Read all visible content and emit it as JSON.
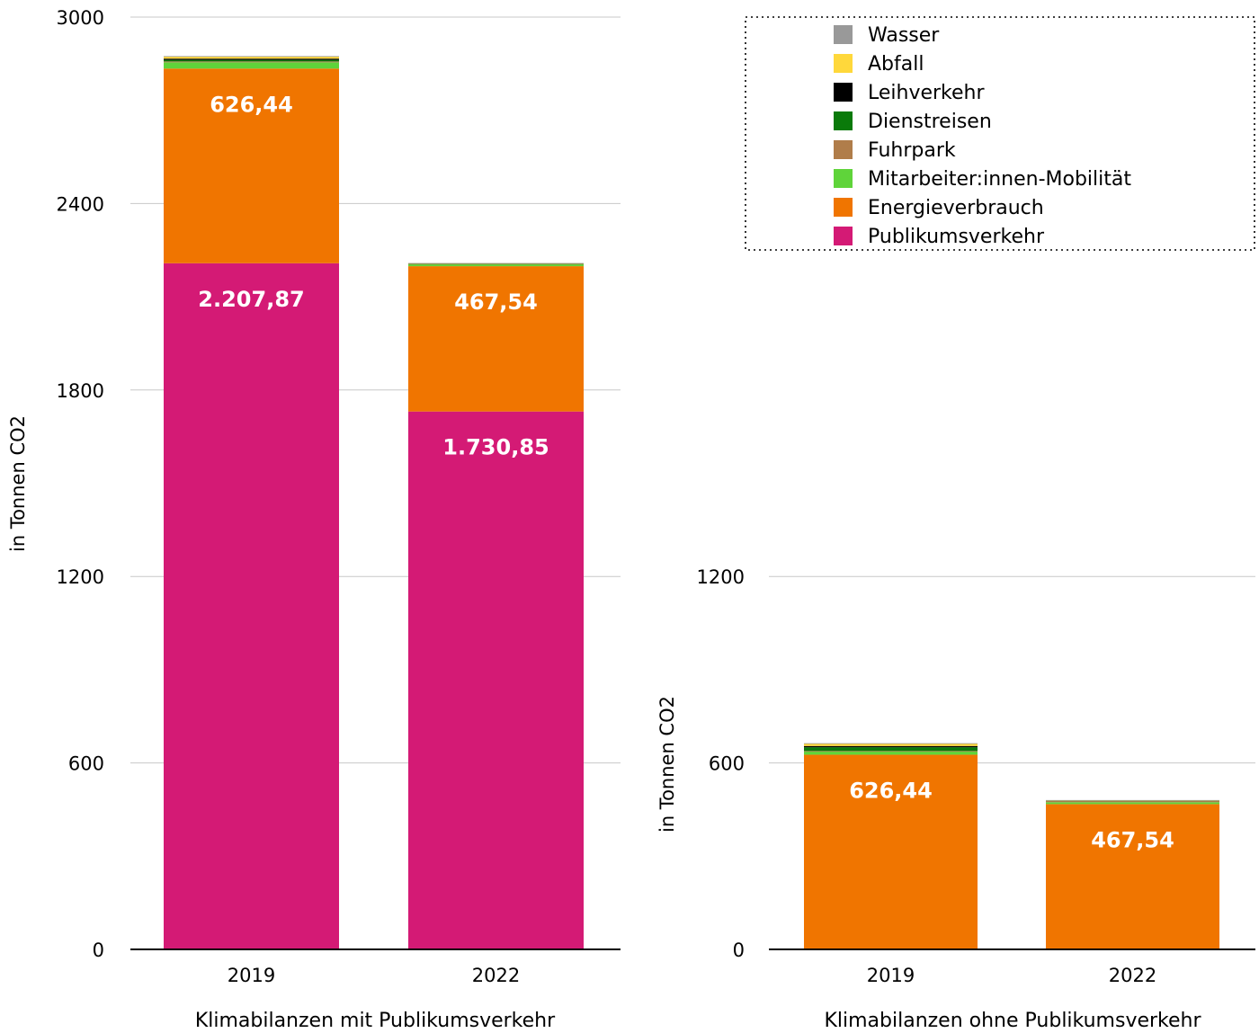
{
  "legend": {
    "items": [
      {
        "label": "Wasser",
        "color": "#999999"
      },
      {
        "label": "Abfall",
        "color": "#FFD83B"
      },
      {
        "label": "Leihverkehr",
        "color": "#000000"
      },
      {
        "label": "Dienstreisen",
        "color": "#0A7A0A"
      },
      {
        "label": "Fuhrpark",
        "color": "#B07D4A"
      },
      {
        "label": "Mitarbeiter:innen-Mobilität",
        "color": "#5FD43A"
      },
      {
        "label": "Energieverbrauch",
        "color": "#F07500"
      },
      {
        "label": "Publikumsverkehr",
        "color": "#D41A75"
      }
    ],
    "placement": "top-right",
    "border": "dotted"
  },
  "chart_data": [
    {
      "type": "bar",
      "stacked": true,
      "categories": [
        "2019",
        "2022"
      ],
      "xlabel": "Klimabilanzen mit Publikumsverkehr",
      "ylabel": "in Tonnen CO2",
      "ylim": [
        0,
        3000
      ],
      "yticks": [
        "0",
        "600",
        "1200",
        "1800",
        "2400",
        "3000"
      ],
      "grid": true,
      "series": [
        {
          "name": "Publikumsverkehr",
          "color": "#D41A75",
          "values": [
            2207.87,
            1730.85
          ],
          "labels": [
            "2.207,87",
            "1.730,85"
          ]
        },
        {
          "name": "Energieverbrauch",
          "color": "#F07500",
          "values": [
            626.44,
            467.54
          ],
          "labels": [
            "626,44",
            "467,54"
          ]
        },
        {
          "name": "Mitarbeiter:innen-Mobilität",
          "color": "#5FD43A",
          "values": [
            20,
            6
          ]
        },
        {
          "name": "Fuhrpark",
          "color": "#B07D4A",
          "values": [
            3,
            2
          ]
        },
        {
          "name": "Dienstreisen",
          "color": "#0A7A0A",
          "values": [
            5,
            1
          ]
        },
        {
          "name": "Leihverkehr",
          "color": "#000000",
          "values": [
            4,
            0
          ]
        },
        {
          "name": "Abfall",
          "color": "#FFD83B",
          "values": [
            7,
            0.5
          ]
        },
        {
          "name": "Wasser",
          "color": "#999999",
          "values": [
            1,
            0.5
          ]
        }
      ]
    },
    {
      "type": "bar",
      "stacked": true,
      "categories": [
        "2019",
        "2022"
      ],
      "xlabel": "Klimabilanzen ohne Publikumsverkehr",
      "ylabel": "in Tonnen CO2",
      "ylim": [
        0,
        1200
      ],
      "yticks": [
        "0",
        "600",
        "1200"
      ],
      "grid": true,
      "series": [
        {
          "name": "Energieverbrauch",
          "color": "#F07500",
          "values": [
            626.44,
            467.54
          ],
          "labels": [
            "626,44",
            "467,54"
          ]
        },
        {
          "name": "Mitarbeiter:innen-Mobilität",
          "color": "#5FD43A",
          "values": [
            10,
            6
          ]
        },
        {
          "name": "Fuhrpark",
          "color": "#B07D4A",
          "values": [
            2,
            4
          ]
        },
        {
          "name": "Dienstreisen",
          "color": "#0A7A0A",
          "values": [
            12,
            2
          ]
        },
        {
          "name": "Leihverkehr",
          "color": "#000000",
          "values": [
            4,
            0
          ]
        },
        {
          "name": "Abfall",
          "color": "#FFD83B",
          "values": [
            8,
            0.5
          ]
        },
        {
          "name": "Wasser",
          "color": "#999999",
          "values": [
            1,
            0.5
          ]
        }
      ]
    }
  ]
}
